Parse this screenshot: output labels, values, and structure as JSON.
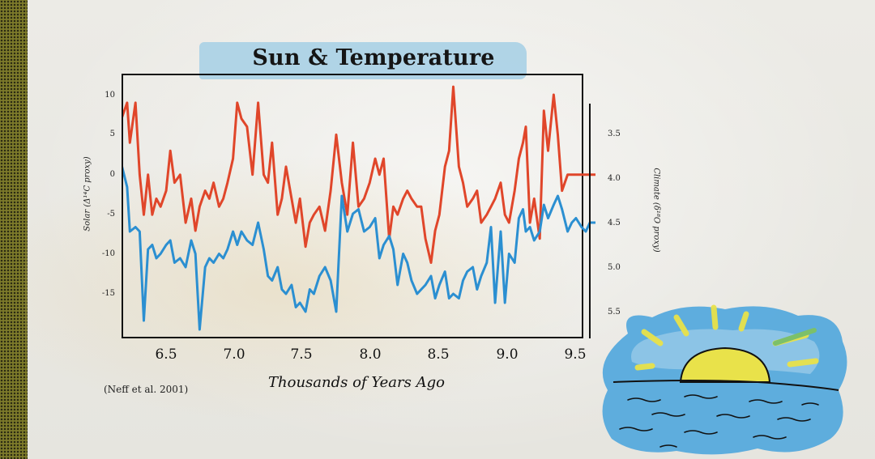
{
  "chart_data": {
    "type": "line",
    "title": "Sun & Temperature",
    "xlabel": "Thousands of Years Ago",
    "ylabel_left": "Solar (Δ¹⁴C proxy)",
    "ylabel_right": "Climate (δ¹⁸O proxy)",
    "xlim": [
      6.2,
      9.6
    ],
    "x_ticks": [
      "6.5",
      "7.0",
      "7.5",
      "8.0",
      "8.5",
      "9.0",
      "9.5"
    ],
    "y_left_ticks": [
      "10",
      "5",
      "0",
      "-5",
      "-10",
      "-15"
    ],
    "y_left_lim": [
      -20,
      11
    ],
    "y_right_ticks": [
      "3.5",
      "4.0",
      "4.5",
      "5.0",
      "5.5"
    ],
    "y_right_lim": [
      3.1,
      6.0
    ],
    "grid": false,
    "series": [
      {
        "name": "Solar",
        "axis": "left",
        "color": "#e0462a",
        "x": [
          6.2,
          6.24,
          6.26,
          6.3,
          6.33,
          6.36,
          6.39,
          6.42,
          6.45,
          6.48,
          6.52,
          6.55,
          6.58,
          6.62,
          6.66,
          6.7,
          6.73,
          6.76,
          6.8,
          6.83,
          6.86,
          6.9,
          6.93,
          6.96,
          7.0,
          7.03,
          7.06,
          7.1,
          7.14,
          7.18,
          7.22,
          7.25,
          7.28,
          7.32,
          7.35,
          7.38,
          7.42,
          7.45,
          7.48,
          7.52,
          7.55,
          7.58,
          7.62,
          7.66,
          7.7,
          7.74,
          7.78,
          7.82,
          7.86,
          7.9,
          7.94,
          7.98,
          8.02,
          8.05,
          8.08,
          8.12,
          8.15,
          8.18,
          8.22,
          8.25,
          8.28,
          8.32,
          8.35,
          8.38,
          8.42,
          8.45,
          8.48,
          8.52,
          8.55,
          8.58,
          8.62,
          8.65,
          8.68,
          8.72,
          8.75,
          8.78,
          8.82,
          8.85,
          8.88,
          8.92,
          8.95,
          8.98,
          9.02,
          9.05,
          9.08,
          9.1,
          9.13,
          9.16,
          9.2,
          9.23,
          9.26,
          9.3,
          9.33,
          9.36,
          9.4,
          9.43,
          9.46,
          9.5,
          9.53,
          9.56,
          9.6
        ],
        "values": [
          7,
          9,
          4,
          9,
          0,
          -5,
          0,
          -5,
          -3,
          -4,
          -2,
          3,
          -1,
          0,
          -6,
          -3,
          -7,
          -4,
          -2,
          -3,
          -1,
          -4,
          -3,
          -1,
          2,
          9,
          7,
          6,
          0,
          9,
          0,
          -1,
          4,
          -5,
          -3,
          1,
          -3,
          -6,
          -3,
          -9,
          -6,
          -5,
          -4,
          -7,
          -2,
          5,
          -1,
          -5,
          4,
          -4,
          -3,
          -1,
          2,
          0,
          2,
          -8,
          -4,
          -5,
          -3,
          -2,
          -3,
          -4,
          -4,
          -8,
          -11,
          -7,
          -5,
          1,
          3,
          11,
          1,
          -1,
          -4,
          -3,
          -2,
          -6,
          -5,
          -4,
          -3,
          -1,
          -5,
          -6,
          -2,
          2,
          4,
          6,
          -6,
          -3,
          -8,
          8,
          3,
          10,
          5,
          -2,
          0,
          0,
          0,
          0,
          0,
          0,
          0
        ]
      },
      {
        "name": "Climate",
        "axis": "right",
        "color": "#2b8fd1",
        "x": [
          6.2,
          6.24,
          6.26,
          6.3,
          6.33,
          6.36,
          6.39,
          6.42,
          6.45,
          6.48,
          6.52,
          6.55,
          6.58,
          6.62,
          6.66,
          6.7,
          6.73,
          6.76,
          6.8,
          6.83,
          6.86,
          6.9,
          6.93,
          6.96,
          7.0,
          7.03,
          7.06,
          7.1,
          7.14,
          7.18,
          7.22,
          7.25,
          7.28,
          7.32,
          7.35,
          7.38,
          7.42,
          7.45,
          7.48,
          7.52,
          7.55,
          7.58,
          7.62,
          7.66,
          7.7,
          7.74,
          7.78,
          7.82,
          7.86,
          7.9,
          7.94,
          7.98,
          8.02,
          8.05,
          8.08,
          8.12,
          8.15,
          8.18,
          8.22,
          8.25,
          8.28,
          8.32,
          8.35,
          8.38,
          8.42,
          8.45,
          8.48,
          8.52,
          8.55,
          8.58,
          8.62,
          8.65,
          8.68,
          8.72,
          8.75,
          8.78,
          8.82,
          8.85,
          8.88,
          8.92,
          8.95,
          8.98,
          9.02,
          9.05,
          9.08,
          9.1,
          9.13,
          9.16,
          9.2,
          9.23,
          9.26,
          9.3,
          9.33,
          9.36,
          9.4,
          9.43,
          9.46,
          9.5,
          9.53,
          9.56,
          9.6
        ],
        "values": [
          3.85,
          4.1,
          4.6,
          4.55,
          4.6,
          5.6,
          4.8,
          4.75,
          4.9,
          4.85,
          4.75,
          4.7,
          4.95,
          4.9,
          5.0,
          4.7,
          4.85,
          5.7,
          5.0,
          4.9,
          4.95,
          4.85,
          4.9,
          4.8,
          4.6,
          4.75,
          4.6,
          4.7,
          4.75,
          4.5,
          4.8,
          5.1,
          5.15,
          5.0,
          5.25,
          5.3,
          5.2,
          5.45,
          5.4,
          5.5,
          5.25,
          5.3,
          5.1,
          5.0,
          5.15,
          5.5,
          4.2,
          4.6,
          4.4,
          4.35,
          4.6,
          4.55,
          4.45,
          4.9,
          4.75,
          4.65,
          4.8,
          5.2,
          4.85,
          4.95,
          5.15,
          5.3,
          5.25,
          5.2,
          5.1,
          5.35,
          5.2,
          5.05,
          5.35,
          5.3,
          5.35,
          5.15,
          5.05,
          5.0,
          5.25,
          5.1,
          4.95,
          4.55,
          5.4,
          4.6,
          5.4,
          4.85,
          4.95,
          4.45,
          4.35,
          4.6,
          4.55,
          4.7,
          4.6,
          4.3,
          4.45,
          4.3,
          4.2,
          4.35,
          4.6,
          4.5,
          4.45,
          4.55,
          4.6,
          4.5,
          4.5
        ]
      }
    ],
    "source": "(Neff et al. 2001)"
  }
}
